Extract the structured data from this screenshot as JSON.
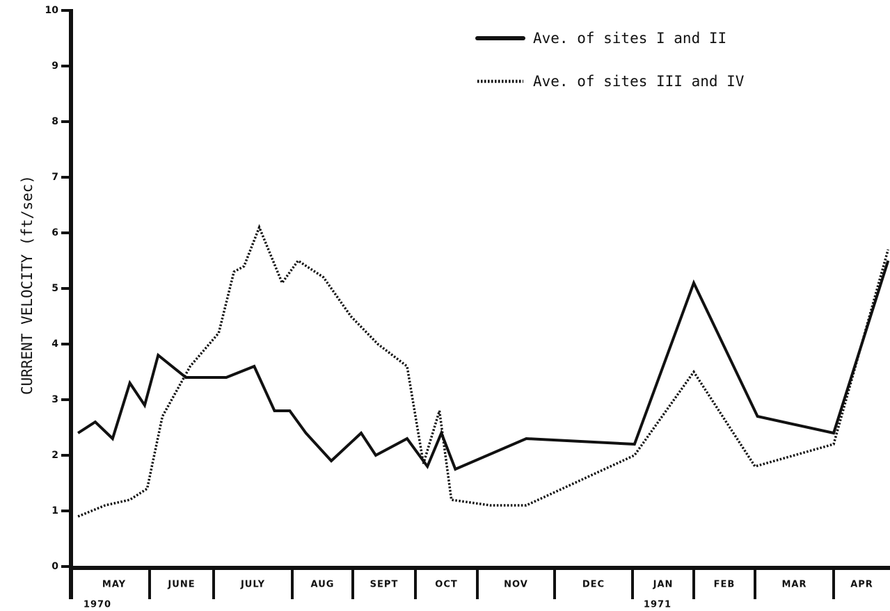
{
  "chart_data": {
    "type": "line",
    "title": "",
    "ylabel": "CURRENT VELOCITY (ft/sec)",
    "xlabel": "",
    "ylim": [
      0,
      10
    ],
    "yticks": [
      "0",
      "1",
      "2",
      "3",
      "4",
      "5",
      "6",
      "7",
      "8",
      "9",
      "10"
    ],
    "grid": false,
    "legend_position": "top-right",
    "months": [
      {
        "label": "MAY",
        "year": "1970"
      },
      {
        "label": "JUNE",
        "year": ""
      },
      {
        "label": "JULY",
        "year": ""
      },
      {
        "label": "AUG",
        "year": ""
      },
      {
        "label": "SEPT",
        "year": ""
      },
      {
        "label": "OCT",
        "year": ""
      },
      {
        "label": "NOV",
        "year": ""
      },
      {
        "label": "DEC",
        "year": ""
      },
      {
        "label": "JAN",
        "year": "1971"
      },
      {
        "label": "FEB",
        "year": ""
      },
      {
        "label": "MAR",
        "year": ""
      },
      {
        "label": "APR",
        "year": ""
      }
    ],
    "series": [
      {
        "name": "Ave. of sites I and II",
        "style": "solid",
        "color": "#111111",
        "points": [
          {
            "date": "1970-05-03",
            "y": 2.4
          },
          {
            "date": "1970-05-10",
            "y": 2.6
          },
          {
            "date": "1970-05-17",
            "y": 2.3
          },
          {
            "date": "1970-05-24",
            "y": 3.3
          },
          {
            "date": "1970-05-30",
            "y": 2.9
          },
          {
            "date": "1970-06-05",
            "y": 3.8
          },
          {
            "date": "1970-06-18",
            "y": 3.4
          },
          {
            "date": "1970-07-06",
            "y": 3.4
          },
          {
            "date": "1970-07-17",
            "y": 3.6
          },
          {
            "date": "1970-07-25",
            "y": 2.8
          },
          {
            "date": "1970-07-31",
            "y": 2.8
          },
          {
            "date": "1970-08-08",
            "y": 2.4
          },
          {
            "date": "1970-08-21",
            "y": 1.9
          },
          {
            "date": "1970-09-05",
            "y": 2.4
          },
          {
            "date": "1970-09-12",
            "y": 2.0
          },
          {
            "date": "1970-09-27",
            "y": 2.3
          },
          {
            "date": "1970-10-07",
            "y": 1.8
          },
          {
            "date": "1970-10-14",
            "y": 2.4
          },
          {
            "date": "1970-10-21",
            "y": 1.75
          },
          {
            "date": "1970-11-20",
            "y": 2.3
          },
          {
            "date": "1971-01-02",
            "y": 2.2
          },
          {
            "date": "1971-02-01",
            "y": 5.1
          },
          {
            "date": "1971-03-02",
            "y": 2.7
          },
          {
            "date": "1971-04-01",
            "y": 2.4
          },
          {
            "date": "1971-04-30",
            "y": 5.5
          }
        ]
      },
      {
        "name": "Ave. of sites III and IV",
        "style": "dotted",
        "color": "#111111",
        "points": [
          {
            "date": "1970-05-03",
            "y": 0.9
          },
          {
            "date": "1970-05-14",
            "y": 1.1
          },
          {
            "date": "1970-05-24",
            "y": 1.2
          },
          {
            "date": "1970-05-31",
            "y": 1.4
          },
          {
            "date": "1970-06-07",
            "y": 2.7
          },
          {
            "date": "1970-06-20",
            "y": 3.6
          },
          {
            "date": "1970-07-03",
            "y": 4.2
          },
          {
            "date": "1970-07-09",
            "y": 5.3
          },
          {
            "date": "1970-07-13",
            "y": 5.4
          },
          {
            "date": "1970-07-19",
            "y": 6.1
          },
          {
            "date": "1970-07-28",
            "y": 5.1
          },
          {
            "date": "1970-08-04",
            "y": 5.5
          },
          {
            "date": "1970-08-17",
            "y": 5.2
          },
          {
            "date": "1970-08-31",
            "y": 4.5
          },
          {
            "date": "1970-09-13",
            "y": 4.0
          },
          {
            "date": "1970-09-27",
            "y": 3.6
          },
          {
            "date": "1970-10-05",
            "y": 1.85
          },
          {
            "date": "1970-10-13",
            "y": 2.8
          },
          {
            "date": "1970-10-19",
            "y": 1.2
          },
          {
            "date": "1970-11-06",
            "y": 1.1
          },
          {
            "date": "1970-11-20",
            "y": 1.1
          },
          {
            "date": "1971-01-02",
            "y": 2.0
          },
          {
            "date": "1971-02-01",
            "y": 3.5
          },
          {
            "date": "1971-03-01",
            "y": 1.8
          },
          {
            "date": "1971-04-01",
            "y": 2.2
          },
          {
            "date": "1971-04-30",
            "y": 5.7
          }
        ]
      }
    ]
  }
}
